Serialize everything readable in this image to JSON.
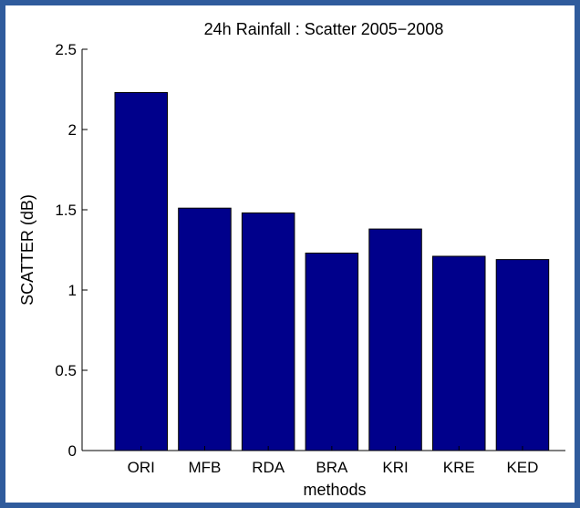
{
  "colors": {
    "frame": "#2f5b9c",
    "bar": "#00008b",
    "background": "#ffffff"
  },
  "chart_data": {
    "type": "bar",
    "title": "24h Rainfall : Scatter  2005−2008",
    "xlabel": "methods",
    "ylabel": "SCATTER (dB)",
    "categories": [
      "ORI",
      "MFB",
      "RDA",
      "BRA",
      "KRI",
      "KRE",
      "KED"
    ],
    "values": [
      2.23,
      1.51,
      1.48,
      1.23,
      1.38,
      1.21,
      1.19
    ],
    "ylim": [
      0,
      2.5
    ],
    "yticks": [
      0,
      0.5,
      1,
      1.5,
      2,
      2.5
    ],
    "ytick_labels": [
      "0",
      "0.5",
      "1",
      "1.5",
      "2",
      "2.5"
    ],
    "grid": false
  }
}
